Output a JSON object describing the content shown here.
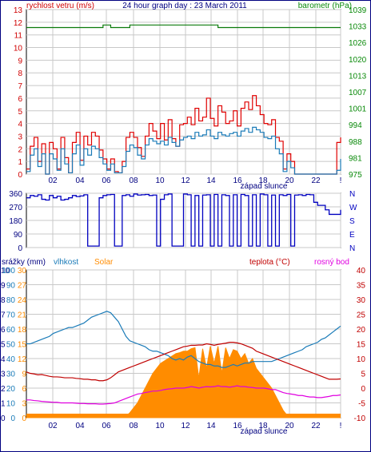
{
  "chart_data": [
    {
      "type": "line",
      "title": "24 hour graph day : 23 March 2011",
      "left_label": "rychlost vetru (m/s)",
      "right_label": "barometr (hPa)",
      "left_ticks": [
        "0",
        "1",
        "2",
        "3",
        "4",
        "5",
        "6",
        "7",
        "8",
        "9",
        "10",
        "11",
        "12",
        "13"
      ],
      "right_ticks": [
        "975",
        "981",
        "988",
        "994",
        "1001",
        "1007",
        "1013",
        "1020",
        "1026",
        "1033",
        "1039"
      ],
      "x_ticks": [
        "02",
        "04",
        "06",
        "08",
        "10",
        "12",
        "14",
        "16",
        "18",
        "20",
        "22",
        "!"
      ],
      "x_note": "západ slunce",
      "ylim": [
        0,
        13
      ],
      "y2lim": [
        975,
        1039
      ],
      "colors": {
        "gust": "#e00000",
        "wind": "#1a7bb8",
        "pressure": "#0a7a0a",
        "left_axis": "#d00000",
        "right_axis": "#0a8a0a"
      },
      "series": [
        {
          "key": "gust",
          "values": [
            0.4,
            2.2,
            2.9,
            1.0,
            2.4,
            0.0,
            2.5,
            2.0,
            0.4,
            2.9,
            1.3,
            0.1,
            2.5,
            3.3,
            1.1,
            3.0,
            2.3,
            3.3,
            3.0,
            1.9,
            1.2,
            0.4,
            1.2,
            0.2,
            0.1,
            1.0,
            2.9,
            3.3,
            2.9,
            2.1,
            1.4,
            3.0,
            4.0,
            3.4,
            2.8,
            4.0,
            2.7,
            4.3,
            2.8,
            2.2,
            3.9,
            4.0,
            4.5,
            3.9,
            5.2,
            4.2,
            4.5,
            6.0,
            4.4,
            3.8,
            5.4,
            4.9,
            4.0,
            4.2,
            5.0,
            3.8,
            5.2,
            5.7,
            5.1,
            6.2,
            5.4,
            4.7,
            4.0,
            3.9,
            4.3,
            2.9,
            2.6,
            0.4,
            1.6,
            1.0,
            0.0,
            0.0,
            0.0,
            0.0,
            0.0,
            0.0,
            0.0,
            0.0,
            0.0,
            0.0,
            0.0,
            2.5,
            2.9
          ]
        },
        {
          "key": "wind",
          "values": [
            0.2,
            1.5,
            2.0,
            0.6,
            1.6,
            0.0,
            1.6,
            1.2,
            0.3,
            2.0,
            0.8,
            0.1,
            1.6,
            2.3,
            0.7,
            2.0,
            1.5,
            2.2,
            2.0,
            1.3,
            0.8,
            0.3,
            0.8,
            0.1,
            0.1,
            0.6,
            1.8,
            2.3,
            2.1,
            1.5,
            1.2,
            2.3,
            2.8,
            2.6,
            2.4,
            2.6,
            2.3,
            2.9,
            2.5,
            2.2,
            2.7,
            2.9,
            3.0,
            2.8,
            3.3,
            3.0,
            3.1,
            3.5,
            3.0,
            2.8,
            3.3,
            3.1,
            3.0,
            3.2,
            3.3,
            3.0,
            3.4,
            3.6,
            3.3,
            3.7,
            3.5,
            3.3,
            2.9,
            2.8,
            3.0,
            2.0,
            1.6,
            0.2,
            1.0,
            0.5,
            0.0,
            0.0,
            0.0,
            0.0,
            0.0,
            0.0,
            0.0,
            0.0,
            0.0,
            0.0,
            0.0,
            0.3,
            1.2
          ]
        },
        {
          "key": "pressure",
          "values": [
            1032,
            1032,
            1032,
            1032,
            1032,
            1032,
            1032,
            1032,
            1032,
            1032,
            1032,
            1032,
            1032,
            1032,
            1032,
            1032,
            1032,
            1032,
            1032,
            1032,
            1033,
            1033,
            1032,
            1032,
            1032,
            1032,
            1032,
            1033,
            1033,
            1033,
            1033,
            1033,
            1033,
            1033,
            1033,
            1033,
            1033,
            1033,
            1033,
            1033,
            1033,
            1033,
            1033,
            1033,
            1033,
            1033,
            1033,
            1033,
            1033,
            1033,
            1032,
            1032,
            1032,
            1032,
            1032,
            1032,
            1032,
            1032,
            1032,
            1032,
            1032,
            1032,
            1032,
            1032,
            1032,
            1032,
            1032,
            1032,
            1032,
            1032,
            1032,
            1032,
            1032,
            1032,
            1032,
            1032,
            1032,
            1032,
            1032,
            1032,
            1032,
            1032,
            1032
          ]
        }
      ]
    },
    {
      "type": "line",
      "left_ticks": [
        "360",
        "270",
        "180",
        "90",
        "0"
      ],
      "right_ticks": [
        "N",
        "W",
        "S",
        "E",
        "N"
      ],
      "ylim": [
        0,
        360
      ],
      "colors": {
        "direction": "#0000c0",
        "left_axis": "#000080",
        "right_axis": "#0000c0"
      },
      "series": [
        {
          "key": "direction",
          "values": [
            330,
            345,
            340,
            350,
            320,
            315,
            345,
            330,
            340,
            315,
            320,
            330,
            345,
            338,
            342,
            350,
            10,
            10,
            10,
            330,
            345,
            350,
            352,
            10,
            10,
            345,
            350,
            340,
            355,
            348,
            350,
            352,
            345,
            348,
            10,
            320,
            350,
            355,
            10,
            10,
            10,
            355,
            350,
            10,
            345,
            10,
            348,
            350,
            10,
            352,
            10,
            350,
            345,
            10,
            350,
            10,
            352,
            345,
            10,
            350,
            10,
            355,
            350,
            10,
            348,
            10,
            350,
            345,
            352,
            10,
            348,
            350,
            345,
            352,
            350,
            300,
            280,
            280,
            250,
            220,
            220,
            220,
            250
          ]
        }
      ]
    },
    {
      "type": "line",
      "left_label": "srážky (mm)",
      "label_humidity": "vlhkost",
      "label_solar": "Solar",
      "right_label": "teplota (°C)",
      "label_dew": "rosný bod",
      "rain_ticks": [
        "0",
        "1",
        "2",
        "3",
        "4",
        "5",
        "6",
        "7",
        "8",
        "9",
        "10"
      ],
      "humidity_ticks": [
        "0",
        "10",
        "20",
        "30",
        "40",
        "50",
        "60",
        "70",
        "80",
        "90",
        "100"
      ],
      "solar_ticks": [
        "0",
        "3",
        "6",
        "9",
        "12",
        "15",
        "18",
        "21",
        "24",
        "27",
        "30"
      ],
      "right_ticks": [
        "-10",
        "-5",
        "0",
        "5",
        "10",
        "15",
        "20",
        "25",
        "30",
        "35",
        "40"
      ],
      "x_ticks": [
        "02",
        "04",
        "06",
        "08",
        "10",
        "12",
        "14",
        "16",
        "18",
        "20",
        "22",
        "!"
      ],
      "x_note": "západ slunce",
      "y2lim": [
        -10,
        40
      ],
      "colors": {
        "humidity": "#1a7bb8",
        "temperature": "#c00000",
        "dew": "#e000e0",
        "solar": "#ff8c00",
        "rain_axis": "#000080",
        "humidity_axis": "#1a7bb8",
        "solar_axis": "#ff8c00",
        "right_axis": "#c00000"
      },
      "series": [
        {
          "key": "humidity",
          "values": [
            50,
            50,
            51,
            52,
            53,
            54,
            55,
            57,
            58,
            59,
            60,
            61,
            61,
            62,
            63,
            64,
            66,
            68,
            69,
            70,
            71,
            72,
            71,
            68,
            65,
            60,
            55,
            52,
            51,
            50,
            49,
            48,
            46,
            45,
            45,
            44,
            43,
            42,
            40,
            39,
            40,
            39,
            41,
            42,
            40,
            38,
            37,
            36,
            36,
            35,
            35,
            34,
            34,
            35,
            36,
            35,
            36,
            37,
            37,
            38,
            38,
            38,
            38,
            38,
            38,
            39,
            40,
            41,
            42,
            43,
            44,
            45,
            46,
            48,
            49,
            50,
            51,
            53,
            54,
            56,
            58,
            60,
            62
          ]
        },
        {
          "key": "temperature",
          "values": [
            5.5,
            5.0,
            4.8,
            4.5,
            4.6,
            4.3,
            4.0,
            3.8,
            3.8,
            3.7,
            3.5,
            3.5,
            3.5,
            3.3,
            3.2,
            3.0,
            3.0,
            2.8,
            2.8,
            2.5,
            2.5,
            2.8,
            3.5,
            4.5,
            5.5,
            6.0,
            6.5,
            7.0,
            7.5,
            8.0,
            8.5,
            9.0,
            9.5,
            10.0,
            10.5,
            11.0,
            11.5,
            12.0,
            12.5,
            13.0,
            13.5,
            14.0,
            14.2,
            14.5,
            14.5,
            14.6,
            14.6,
            15.0,
            14.8,
            14.5,
            14.8,
            15.0,
            15.2,
            15.5,
            15.5,
            15.3,
            15.0,
            14.5,
            14.0,
            13.5,
            12.5,
            12.0,
            11.5,
            11.0,
            10.5,
            10.0,
            9.5,
            9.0,
            8.5,
            8.0,
            7.5,
            7.0,
            6.5,
            6.0,
            5.5,
            5.0,
            4.5,
            4.0,
            3.5,
            3.0,
            3.0,
            3.0,
            3.1
          ]
        },
        {
          "key": "dew",
          "values": [
            -4.0,
            -4.0,
            -4.2,
            -4.3,
            -4.5,
            -4.6,
            -4.7,
            -4.8,
            -4.8,
            -5.0,
            -5.0,
            -5.0,
            -5.0,
            -5.1,
            -5.2,
            -5.2,
            -5.3,
            -5.3,
            -5.3,
            -5.4,
            -5.4,
            -5.3,
            -5.2,
            -5.0,
            -4.5,
            -4.0,
            -3.5,
            -3.0,
            -2.5,
            -2.0,
            -1.8,
            -1.5,
            -1.3,
            -1.0,
            -1.0,
            -0.8,
            -0.5,
            -0.3,
            -0.2,
            0.0,
            0.0,
            0.0,
            0.2,
            0.5,
            0.3,
            0.0,
            0.3,
            0.5,
            0.4,
            0.5,
            0.8,
            0.5,
            0.5,
            0.3,
            0.5,
            0.8,
            0.5,
            0.5,
            0.3,
            0.2,
            0.0,
            0.0,
            0.0,
            -0.2,
            -0.5,
            -0.5,
            -1.0,
            -1.5,
            -1.8,
            -2.0,
            -2.2,
            -2.5,
            -2.5,
            -2.8,
            -3.0,
            -3.0,
            -3.2,
            -3.2,
            -3.0,
            -2.8,
            -2.5,
            -2.5,
            -2.3
          ]
        },
        {
          "key": "solar",
          "values": [
            0,
            0,
            0,
            0,
            0,
            0,
            0,
            0,
            0,
            0,
            0,
            0,
            0,
            0,
            0,
            0,
            0,
            0,
            0,
            0,
            0,
            0,
            0,
            0,
            0,
            0,
            0.3,
            1.0,
            2.0,
            3.0,
            4.5,
            6.0,
            7.5,
            9.0,
            10.0,
            11.0,
            11.5,
            12.0,
            12.5,
            13.0,
            13.2,
            13.5,
            13.5,
            14.0,
            14.2,
            8.0,
            14.0,
            10.0,
            14.5,
            11.0,
            14.5,
            9.0,
            14.2,
            12.0,
            13.8,
            13.5,
            12.0,
            13.0,
            11.0,
            12.0,
            10.0,
            9.0,
            8.0,
            7.0,
            6.0,
            4.5,
            3.0,
            1.5,
            0.5,
            0,
            0,
            0,
            0,
            0,
            0,
            0,
            0,
            0,
            0,
            0,
            0,
            0,
            0
          ]
        }
      ]
    }
  ]
}
